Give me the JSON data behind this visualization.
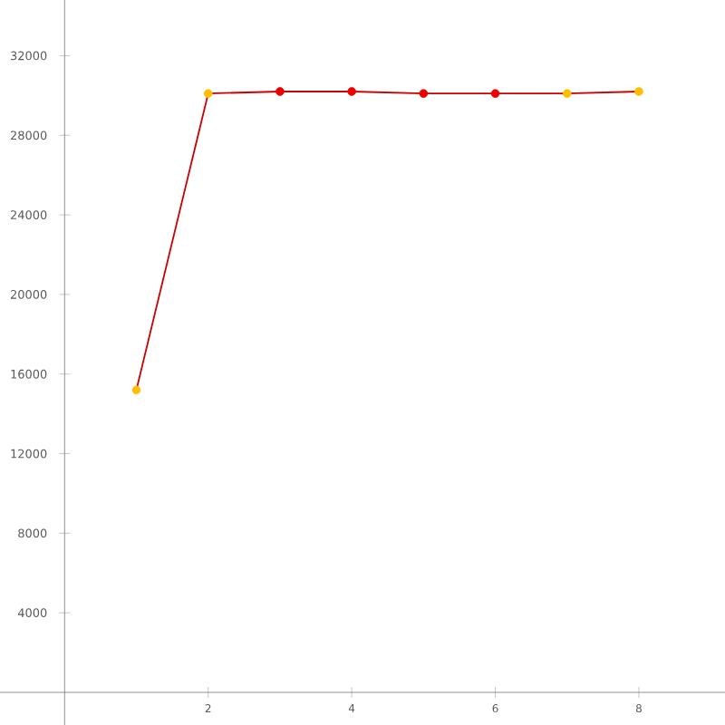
{
  "chart_data": {
    "type": "line",
    "x": [
      1,
      2,
      3,
      4,
      5,
      6,
      7,
      8
    ],
    "series": [
      {
        "color": "#cc0000",
        "colors": [
          "#ffbf00",
          "#ffbf00",
          "#ee0000",
          "#ee0000",
          "#ee0000",
          "#ee0000",
          "#ffbf00",
          "#ffbf00"
        ],
        "values": [
          15200,
          30100,
          30200,
          30200,
          30100,
          30100,
          30100,
          30200
        ]
      }
    ],
    "xlim": [
      -0.9,
      9.2
    ],
    "ylim": [
      -1640,
      34800
    ],
    "xticks": [
      2,
      4,
      6,
      8
    ],
    "yticks": [
      4000,
      8000,
      12000,
      16000,
      20000,
      24000,
      28000,
      32000
    ],
    "marker": "circle",
    "line_style": "solid",
    "grid": false
  }
}
